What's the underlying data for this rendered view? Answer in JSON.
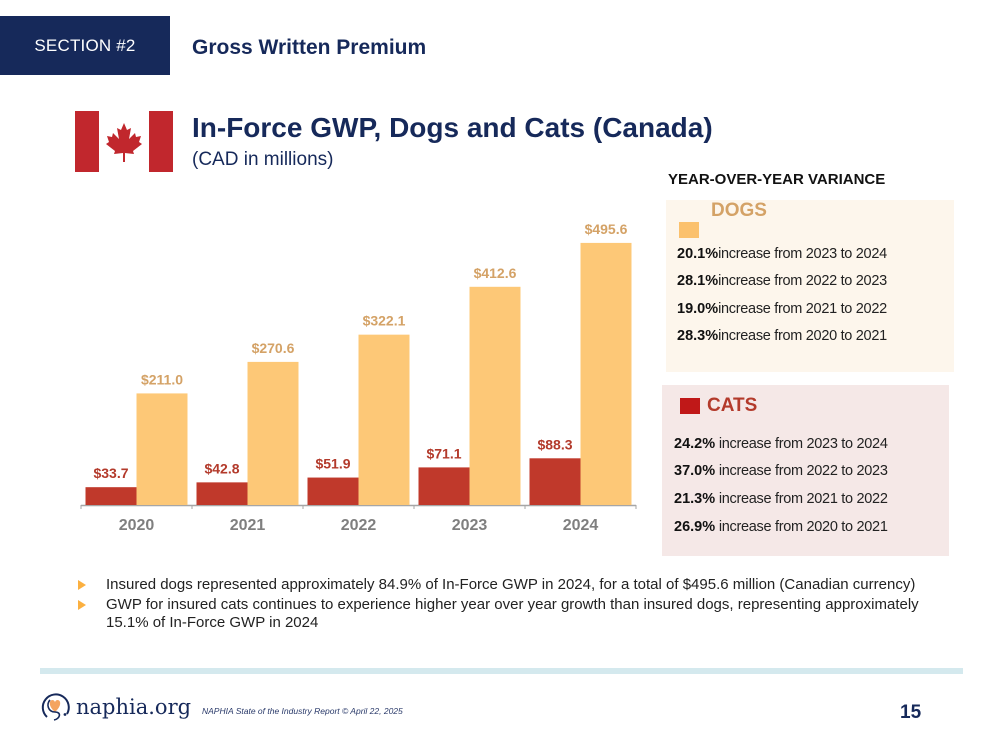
{
  "header": {
    "section_tag": "SECTION #2",
    "section_title": "Gross Written Premium"
  },
  "title": {
    "main": "In-Force GWP, Dogs and Cats (Canada)",
    "subtitle": "(CAD in millions)",
    "flag": "canada-flag"
  },
  "colors": {
    "navy": "#16295a",
    "dogs": "#fdc877",
    "dogs_label": "#d4a266",
    "cats": "#c0392b",
    "cats_label": "#b33a2b"
  },
  "chart_data": {
    "type": "bar",
    "title": "In-Force GWP, Dogs and Cats (Canada)",
    "subtitle": "(CAD in millions)",
    "xlabel": "",
    "ylabel": "",
    "categories": [
      "2020",
      "2021",
      "2022",
      "2023",
      "2024"
    ],
    "series": [
      {
        "name": "Cats",
        "values": [
          33.7,
          42.8,
          51.9,
          71.1,
          88.3
        ],
        "labels": [
          "$33.7",
          "$42.8",
          "$51.9",
          "$71.1",
          "$88.3"
        ],
        "color": "#c0392b"
      },
      {
        "name": "Dogs",
        "values": [
          211.0,
          270.6,
          322.1,
          412.6,
          495.6
        ],
        "labels": [
          "$211.0",
          "$270.6",
          "$322.1",
          "$412.6",
          "$495.6"
        ],
        "color": "#fdc877"
      }
    ],
    "ylim": [
      0,
      520
    ],
    "grid": false,
    "legend": "none"
  },
  "yoy": {
    "heading": "YEAR-OVER-YEAR VARIANCE",
    "dogs": {
      "label": "DOGS",
      "rows": [
        {
          "pct": "20.1%",
          "text": "increase from 2023 to 2024"
        },
        {
          "pct": "28.1%",
          "text": "increase from 2022 to 2023"
        },
        {
          "pct": "19.0%",
          "text": "increase from 2021 to 2022"
        },
        {
          "pct": "28.3%",
          "text": "increase from 2020 to 2021"
        }
      ]
    },
    "cats": {
      "label": "CATS",
      "rows": [
        {
          "pct": "24.2%",
          "text": "increase from 2023 to 2024"
        },
        {
          "pct": "37.0%",
          "text": "increase from 2022 to 2023"
        },
        {
          "pct": "21.3%",
          "text": "increase from 2021 to 2022"
        },
        {
          "pct": "26.9%",
          "text": "increase from 2020 to 2021"
        }
      ]
    }
  },
  "bullets": [
    "Insured dogs represented approximately 84.9% of In-Force GWP in 2024, for a total of $495.6 million (Canadian currency)",
    "GWP for insured cats continues to experience higher year over year growth than insured dogs, representing approximately 15.1% of In-Force GWP in 2024"
  ],
  "footer": {
    "logo_text": "naphia.org",
    "note": "NAPHIA State of the Industry Report © April 22, 2025",
    "page_number": "15"
  }
}
